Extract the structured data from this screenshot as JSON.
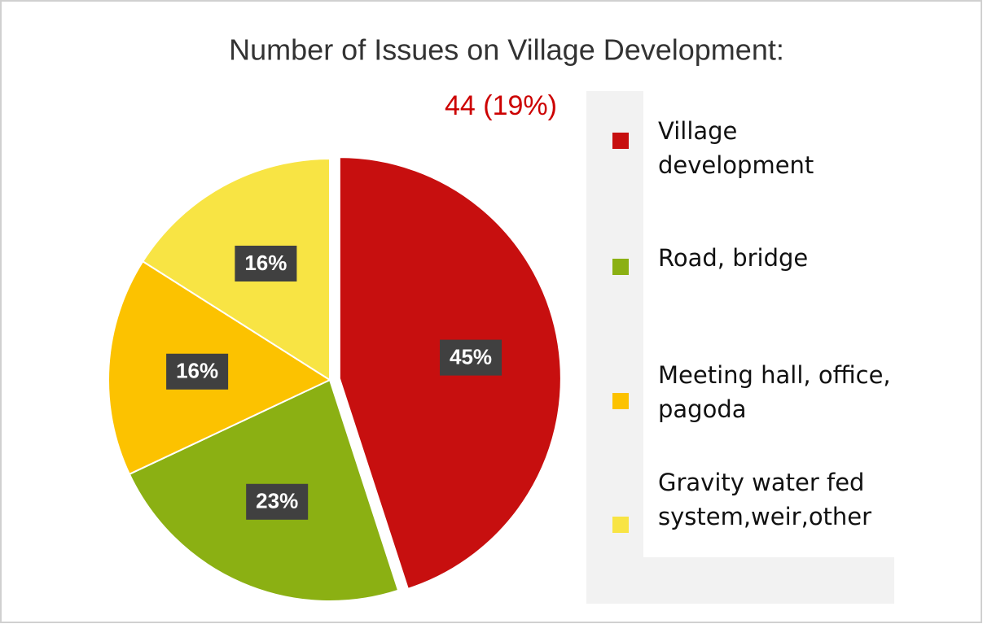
{
  "chart_data": {
    "type": "pie",
    "title": "Number of Issues on Village Development:",
    "subtitle": "44 (19%)",
    "categories": [
      "Village development",
      "Road, bridge",
      "Meeting hall, office, pagoda",
      "Gravity water fed system,weir,other"
    ],
    "values": [
      45,
      23,
      16,
      16
    ],
    "value_labels": [
      "45%",
      "23%",
      "16%",
      "16%"
    ],
    "colors": [
      "#c70f0f",
      "#8bb013",
      "#fcc200",
      "#f8e444"
    ],
    "legend": "right"
  }
}
